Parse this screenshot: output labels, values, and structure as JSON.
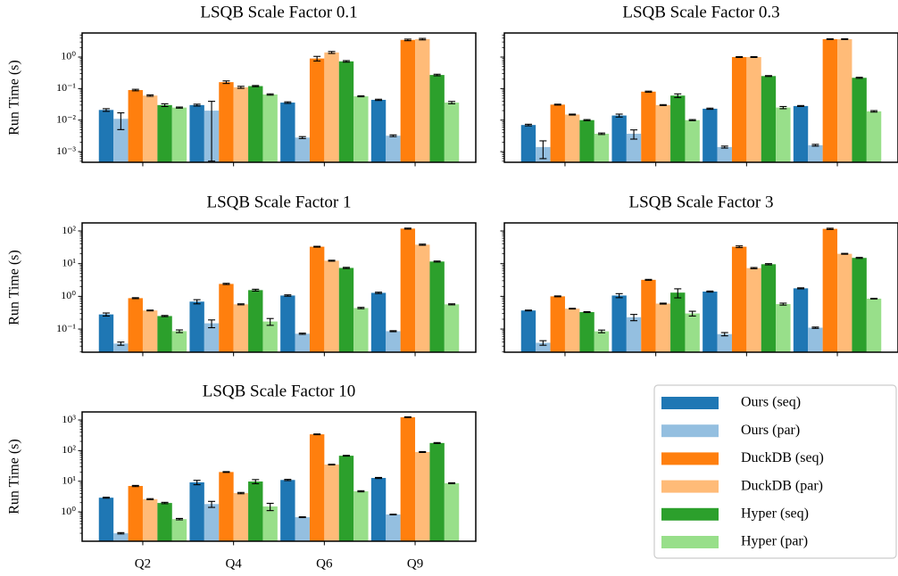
{
  "chart_data": [
    {
      "type": "bar",
      "title": "LSQB Scale Factor 0.1",
      "ylabel": "Run Time (s)",
      "categories": [
        "Q2",
        "Q4",
        "Q6",
        "Q9"
      ],
      "series": [
        {
          "name": "Ours (seq)",
          "color": "#1f77b4",
          "values": [
            0.021,
            0.03,
            0.036,
            0.044
          ],
          "errors": [
            0.002,
            0.002,
            0.002,
            0.002
          ]
        },
        {
          "name": "Ours (par)",
          "color": "#94bfe0",
          "values": [
            0.011,
            0.02,
            0.0028,
            0.0032
          ],
          "errors": [
            0.006,
            0.0195,
            0.0002,
            0.0002
          ]
        },
        {
          "name": "DuckDB (seq)",
          "color": "#ff7f0e",
          "values": [
            0.09,
            0.16,
            0.9,
            3.5
          ],
          "errors": [
            0.005,
            0.015,
            0.15,
            0.2
          ]
        },
        {
          "name": "DuckDB (par)",
          "color": "#ffbb78",
          "values": [
            0.06,
            0.11,
            1.4,
            3.7
          ],
          "errors": [
            0.003,
            0.008,
            0.1,
            0.2
          ]
        },
        {
          "name": "Hyper (seq)",
          "color": "#2ca02c",
          "values": [
            0.03,
            0.12,
            0.73,
            0.27
          ],
          "errors": [
            0.003,
            0.005,
            0.04,
            0.015
          ]
        },
        {
          "name": "Hyper (par)",
          "color": "#98df8a",
          "values": [
            0.025,
            0.065,
            0.057,
            0.036
          ],
          "errors": [
            0.001,
            0.003,
            0.002,
            0.003
          ]
        }
      ],
      "ylim": [
        0.00046,
        5.8
      ],
      "log_scale": true,
      "ytick_labels": true,
      "xtick_labels": false,
      "yticks": [
        {
          "value": 0.001,
          "label": "10⁻³"
        },
        {
          "value": 0.01,
          "label": "10⁻²"
        },
        {
          "value": 0.1,
          "label": "10⁻¹"
        },
        {
          "value": 1,
          "label": "10⁰"
        }
      ]
    },
    {
      "type": "bar",
      "title": "LSQB Scale Factor 0.3",
      "categories": [
        "Q2",
        "Q4",
        "Q6",
        "Q9"
      ],
      "series": [
        {
          "name": "Ours (seq)",
          "color": "#1f77b4",
          "values": [
            0.007,
            0.014,
            0.023,
            0.028
          ],
          "errors": [
            0.0004,
            0.0015,
            0.001,
            0.001
          ]
        },
        {
          "name": "Ours (par)",
          "color": "#94bfe0",
          "values": [
            0.0014,
            0.0037,
            0.0014,
            0.0016
          ],
          "errors": [
            0.0008,
            0.0012,
            0.0001,
            0.0001
          ]
        },
        {
          "name": "DuckDB (seq)",
          "color": "#ff7f0e",
          "values": [
            0.031,
            0.08,
            1.0,
            3.7
          ],
          "errors": [
            0.001,
            0.003,
            0.03,
            0.1
          ]
        },
        {
          "name": "DuckDB (par)",
          "color": "#ffbb78",
          "values": [
            0.015,
            0.03,
            1.0,
            3.7
          ],
          "errors": [
            0.0005,
            0.001,
            0.03,
            0.1
          ]
        },
        {
          "name": "Hyper (seq)",
          "color": "#2ca02c",
          "values": [
            0.01,
            0.06,
            0.25,
            0.22
          ],
          "errors": [
            0.0004,
            0.008,
            0.008,
            0.008
          ]
        },
        {
          "name": "Hyper (par)",
          "color": "#98df8a",
          "values": [
            0.0037,
            0.01,
            0.025,
            0.019
          ],
          "errors": [
            0.0002,
            0.0004,
            0.002,
            0.001
          ]
        }
      ],
      "ylim": [
        0.00046,
        5.8
      ],
      "log_scale": true,
      "ytick_labels": false,
      "xtick_labels": false,
      "yticks": [
        0.001,
        0.01,
        0.1,
        1
      ]
    },
    {
      "type": "bar",
      "title": "LSQB Scale Factor 1",
      "ylabel": "Run Time (s)",
      "categories": [
        "Q2",
        "Q4",
        "Q6",
        "Q9"
      ],
      "series": [
        {
          "name": "Ours (seq)",
          "color": "#1f77b4",
          "values": [
            0.28,
            0.69,
            1.06,
            1.28
          ],
          "errors": [
            0.03,
            0.1,
            0.05,
            0.06
          ]
        },
        {
          "name": "Ours (par)",
          "color": "#94bfe0",
          "values": [
            0.036,
            0.15,
            0.072,
            0.086
          ],
          "errors": [
            0.004,
            0.04,
            0.003,
            0.003
          ]
        },
        {
          "name": "DuckDB (seq)",
          "color": "#ff7f0e",
          "values": [
            0.88,
            2.4,
            33,
            118
          ],
          "errors": [
            0.03,
            0.1,
            1,
            4
          ]
        },
        {
          "name": "DuckDB (par)",
          "color": "#ffbb78",
          "values": [
            0.37,
            0.57,
            12.3,
            38
          ],
          "errors": [
            0.01,
            0.02,
            0.4,
            1.5
          ]
        },
        {
          "name": "Hyper (seq)",
          "color": "#2ca02c",
          "values": [
            0.25,
            1.55,
            7.4,
            11.6
          ],
          "errors": [
            0.01,
            0.1,
            0.3,
            0.4
          ]
        },
        {
          "name": "Hyper (par)",
          "color": "#98df8a",
          "values": [
            0.086,
            0.17,
            0.44,
            0.57
          ],
          "errors": [
            0.008,
            0.04,
            0.02,
            0.02
          ]
        }
      ],
      "ylim": [
        0.0196,
        176
      ],
      "log_scale": true,
      "ytick_labels": true,
      "xtick_labels": false,
      "yticks": [
        {
          "value": 0.1,
          "label": "10⁻¹"
        },
        {
          "value": 1,
          "label": "10⁰"
        },
        {
          "value": 10,
          "label": "10¹"
        },
        {
          "value": 100,
          "label": "10²"
        }
      ]
    },
    {
      "type": "bar",
      "title": "LSQB Scale Factor 3",
      "categories": [
        "Q2",
        "Q4",
        "Q6",
        "Q9"
      ],
      "series": [
        {
          "name": "Ours (seq)",
          "color": "#1f77b4",
          "values": [
            0.37,
            1.06,
            1.4,
            1.76
          ],
          "errors": [
            0.01,
            0.15,
            0.05,
            0.06
          ]
        },
        {
          "name": "Ours (par)",
          "color": "#94bfe0",
          "values": [
            0.038,
            0.23,
            0.07,
            0.11
          ],
          "errors": [
            0.006,
            0.05,
            0.008,
            0.005
          ]
        },
        {
          "name": "DuckDB (seq)",
          "color": "#ff7f0e",
          "values": [
            1.0,
            3.2,
            33,
            116
          ],
          "errors": [
            0.03,
            0.1,
            2,
            5
          ]
        },
        {
          "name": "DuckDB (par)",
          "color": "#ffbb78",
          "values": [
            0.42,
            0.6,
            7.3,
            20
          ],
          "errors": [
            0.01,
            0.02,
            0.3,
            0.6
          ]
        },
        {
          "name": "Hyper (seq)",
          "color": "#2ca02c",
          "values": [
            0.33,
            1.3,
            9.6,
            15
          ],
          "errors": [
            0.01,
            0.4,
            0.4,
            0.5
          ]
        },
        {
          "name": "Hyper (par)",
          "color": "#98df8a",
          "values": [
            0.085,
            0.3,
            0.58,
            0.85
          ],
          "errors": [
            0.008,
            0.05,
            0.04,
            0.02
          ]
        }
      ],
      "ylim": [
        0.0196,
        176
      ],
      "log_scale": true,
      "ytick_labels": false,
      "xtick_labels": false,
      "yticks": [
        0.1,
        1,
        10,
        100
      ]
    },
    {
      "type": "bar",
      "title": "LSQB Scale Factor 10",
      "ylabel": "Run Time (s)",
      "categories": [
        "Q2",
        "Q4",
        "Q6",
        "Q9"
      ],
      "series": [
        {
          "name": "Ours (seq)",
          "color": "#1f77b4",
          "values": [
            2.9,
            9.2,
            11,
            12.8
          ],
          "errors": [
            0.1,
            1.5,
            0.5,
            0.5
          ]
        },
        {
          "name": "Ours (par)",
          "color": "#94bfe0",
          "values": [
            0.2,
            1.8,
            0.67,
            0.82
          ],
          "errors": [
            0.01,
            0.4,
            0.02,
            0.02
          ]
        },
        {
          "name": "DuckDB (seq)",
          "color": "#ff7f0e",
          "values": [
            7,
            20,
            340,
            1230
          ],
          "errors": [
            0.3,
            0.6,
            10,
            40
          ]
        },
        {
          "name": "DuckDB (par)",
          "color": "#ffbb78",
          "values": [
            2.6,
            4.1,
            35,
            90
          ],
          "errors": [
            0.1,
            0.2,
            1,
            3
          ]
        },
        {
          "name": "Hyper (seq)",
          "color": "#2ca02c",
          "values": [
            1.95,
            9.8,
            68,
            177
          ],
          "errors": [
            0.1,
            1.5,
            2,
            6
          ]
        },
        {
          "name": "Hyper (par)",
          "color": "#98df8a",
          "values": [
            0.58,
            1.5,
            4.7,
            8.6
          ],
          "errors": [
            0.03,
            0.4,
            0.2,
            0.3
          ]
        }
      ],
      "ylim": [
        0.11,
        1830
      ],
      "log_scale": true,
      "ytick_labels": true,
      "xtick_labels": true,
      "legend": "lower right",
      "yticks": [
        {
          "value": 1,
          "label": "10⁰"
        },
        {
          "value": 10,
          "label": "10¹"
        },
        {
          "value": 100,
          "label": "10²"
        },
        {
          "value": 1000,
          "label": "10³"
        }
      ]
    }
  ]
}
